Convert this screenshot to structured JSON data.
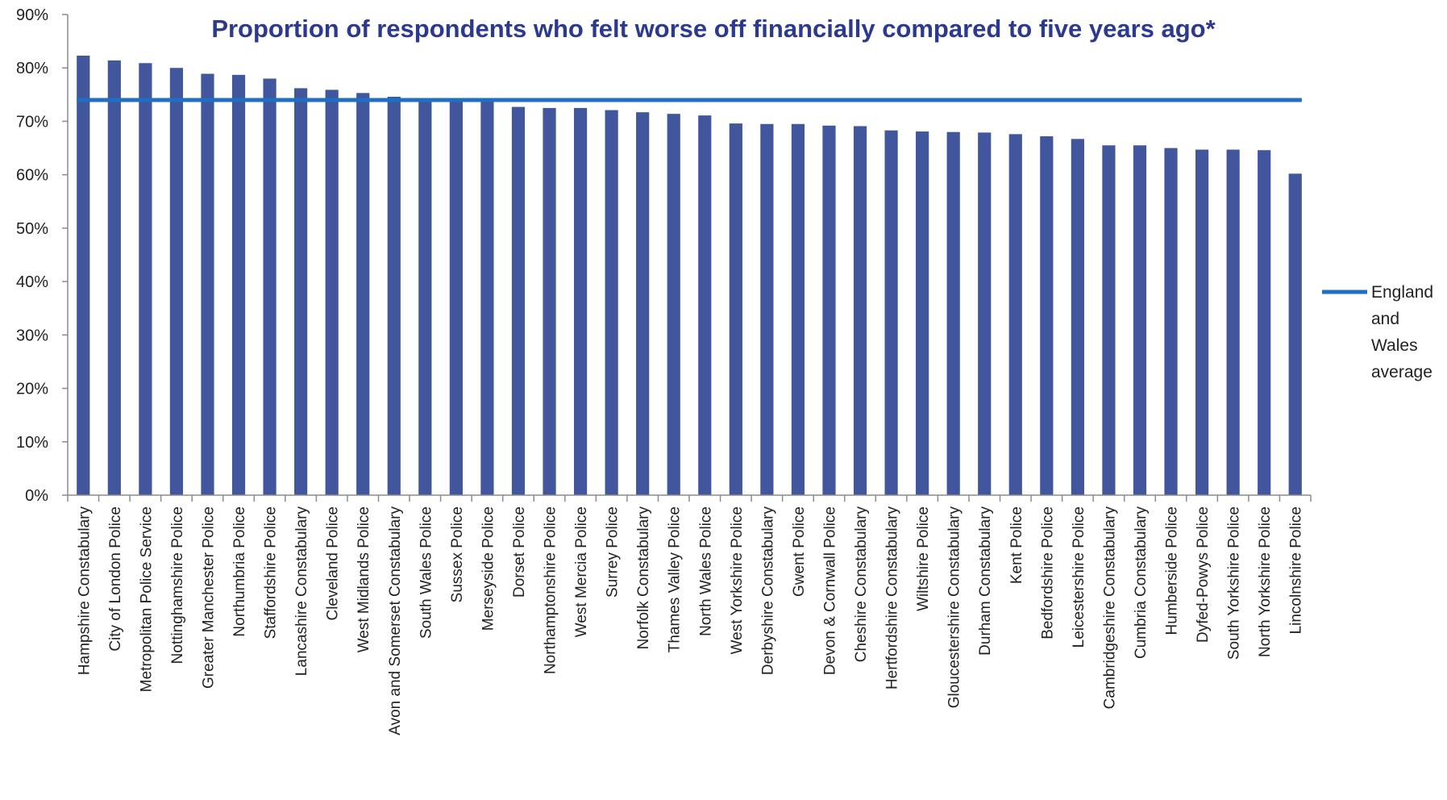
{
  "chart_data": {
    "type": "bar",
    "title": "Proportion of respondents who felt worse off financially compared to five years ago*",
    "xlabel": "",
    "ylabel": "",
    "ylim": [
      0,
      90
    ],
    "yticks": [
      "0%",
      "10%",
      "20%",
      "30%",
      "40%",
      "50%",
      "60%",
      "70%",
      "80%",
      "90%"
    ],
    "categories": [
      "Hampshire Constabulary",
      "City of London Police",
      "Metropolitan Police Service",
      "Nottinghamshire Police",
      "Greater Manchester Police",
      "Northumbria Police",
      "Staffordshire Police",
      "Lancashire Constabulary",
      "Cleveland Police",
      "West Midlands Police",
      "Avon and Somerset Constabulary",
      "South Wales Police",
      "Sussex Police",
      "Merseyside Police",
      "Dorset Police",
      "Northamptonshire Police",
      "West Mercia Police",
      "Surrey Police",
      "Norfolk Constabulary",
      "Thames Valley Police",
      "North Wales Police",
      "West Yorkshire Police",
      "Derbyshire Constabulary",
      "Gwent Police",
      "Devon & Cornwall Police",
      "Cheshire Constabulary",
      "Hertfordshire Constabulary",
      "Wiltshire Police",
      "Gloucestershire Constabulary",
      "Durham Constabulary",
      "Kent Police",
      "Bedfordshire Police",
      "Leicestershire Police",
      "Cambridgeshire Constabulary",
      "Cumbria Constabulary",
      "Humberside Police",
      "Dyfed-Powys Police",
      "South Yorkshire Police",
      "North Yorkshire Police",
      "Lincolnshire Police"
    ],
    "series": [
      {
        "values": [
          82.3,
          81.4,
          80.9,
          80.0,
          78.9,
          78.7,
          78.0,
          76.2,
          75.9,
          75.3,
          74.6,
          74.2,
          74.2,
          74.0,
          72.7,
          72.5,
          72.5,
          72.1,
          71.7,
          71.4,
          71.1,
          69.6,
          69.5,
          69.5,
          69.2,
          69.1,
          68.3,
          68.1,
          68.0,
          67.9,
          67.6,
          67.2,
          66.7,
          65.5,
          65.5,
          65.0,
          64.7,
          64.7,
          64.6,
          60.2
        ],
        "color": "#41569c"
      },
      {
        "name": "England and Wales average",
        "type": "line",
        "value": 74.0,
        "color": "#1f6fc4"
      }
    ],
    "legend_position": "right",
    "grid": false,
    "colors": {
      "title": "#2b3a8e",
      "axis": "#8c8c8c"
    }
  }
}
